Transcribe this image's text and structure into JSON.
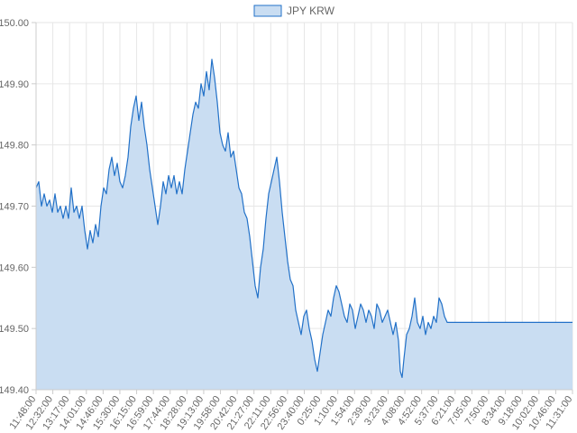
{
  "chart_data": {
    "type": "area",
    "series": [
      {
        "name": "JPY KRW",
        "color": "#2271c8",
        "fill": "#c9ddf2",
        "points": [
          [
            0,
            149.73
          ],
          [
            3,
            149.74
          ],
          [
            6,
            149.7
          ],
          [
            9,
            149.72
          ],
          [
            12,
            149.7
          ],
          [
            15,
            149.71
          ],
          [
            18,
            149.69
          ],
          [
            21,
            149.72
          ],
          [
            24,
            149.69
          ],
          [
            27,
            149.7
          ],
          [
            30,
            149.68
          ],
          [
            33,
            149.7
          ],
          [
            36,
            149.68
          ],
          [
            39,
            149.73
          ],
          [
            42,
            149.69
          ],
          [
            45,
            149.7
          ],
          [
            48,
            149.68
          ],
          [
            51,
            149.7
          ],
          [
            54,
            149.66
          ],
          [
            57,
            149.63
          ],
          [
            60,
            149.66
          ],
          [
            63,
            149.64
          ],
          [
            66,
            149.67
          ],
          [
            69,
            149.65
          ],
          [
            72,
            149.7
          ],
          [
            75,
            149.73
          ],
          [
            78,
            149.72
          ],
          [
            81,
            149.76
          ],
          [
            84,
            149.78
          ],
          [
            87,
            149.75
          ],
          [
            90,
            149.77
          ],
          [
            93,
            149.74
          ],
          [
            96,
            149.73
          ],
          [
            99,
            149.75
          ],
          [
            102,
            149.78
          ],
          [
            105,
            149.83
          ],
          [
            108,
            149.86
          ],
          [
            111,
            149.88
          ],
          [
            114,
            149.84
          ],
          [
            117,
            149.87
          ],
          [
            120,
            149.83
          ],
          [
            123,
            149.8
          ],
          [
            126,
            149.76
          ],
          [
            129,
            149.73
          ],
          [
            132,
            149.7
          ],
          [
            135,
            149.67
          ],
          [
            138,
            149.7
          ],
          [
            141,
            149.74
          ],
          [
            144,
            149.72
          ],
          [
            147,
            149.75
          ],
          [
            150,
            149.73
          ],
          [
            153,
            149.75
          ],
          [
            156,
            149.72
          ],
          [
            159,
            149.74
          ],
          [
            162,
            149.72
          ],
          [
            165,
            149.76
          ],
          [
            168,
            149.79
          ],
          [
            171,
            149.82
          ],
          [
            174,
            149.85
          ],
          [
            177,
            149.87
          ],
          [
            180,
            149.86
          ],
          [
            183,
            149.9
          ],
          [
            186,
            149.88
          ],
          [
            189,
            149.92
          ],
          [
            192,
            149.89
          ],
          [
            195,
            149.94
          ],
          [
            198,
            149.91
          ],
          [
            201,
            149.87
          ],
          [
            204,
            149.82
          ],
          [
            207,
            149.8
          ],
          [
            210,
            149.79
          ],
          [
            213,
            149.82
          ],
          [
            216,
            149.78
          ],
          [
            219,
            149.79
          ],
          [
            222,
            149.76
          ],
          [
            225,
            149.73
          ],
          [
            228,
            149.72
          ],
          [
            231,
            149.69
          ],
          [
            234,
            149.68
          ],
          [
            237,
            149.65
          ],
          [
            240,
            149.61
          ],
          [
            243,
            149.57
          ],
          [
            246,
            149.55
          ],
          [
            249,
            149.6
          ],
          [
            252,
            149.63
          ],
          [
            255,
            149.68
          ],
          [
            258,
            149.72
          ],
          [
            261,
            149.74
          ],
          [
            264,
            149.76
          ],
          [
            267,
            149.78
          ],
          [
            270,
            149.74
          ],
          [
            273,
            149.69
          ],
          [
            276,
            149.65
          ],
          [
            279,
            149.61
          ],
          [
            282,
            149.58
          ],
          [
            285,
            149.57
          ],
          [
            288,
            149.53
          ],
          [
            291,
            149.51
          ],
          [
            294,
            149.49
          ],
          [
            297,
            149.52
          ],
          [
            300,
            149.53
          ],
          [
            303,
            149.5
          ],
          [
            306,
            149.48
          ],
          [
            309,
            149.45
          ],
          [
            312,
            149.43
          ],
          [
            315,
            149.46
          ],
          [
            318,
            149.49
          ],
          [
            321,
            149.51
          ],
          [
            324,
            149.53
          ],
          [
            327,
            149.52
          ],
          [
            330,
            149.55
          ],
          [
            333,
            149.57
          ],
          [
            336,
            149.56
          ],
          [
            339,
            149.54
          ],
          [
            342,
            149.52
          ],
          [
            345,
            149.51
          ],
          [
            348,
            149.54
          ],
          [
            351,
            149.53
          ],
          [
            354,
            149.5
          ],
          [
            357,
            149.52
          ],
          [
            360,
            149.54
          ],
          [
            363,
            149.53
          ],
          [
            366,
            149.51
          ],
          [
            369,
            149.53
          ],
          [
            372,
            149.52
          ],
          [
            375,
            149.5
          ],
          [
            378,
            149.54
          ],
          [
            381,
            149.53
          ],
          [
            384,
            149.51
          ],
          [
            387,
            149.52
          ],
          [
            390,
            149.53
          ],
          [
            393,
            149.51
          ],
          [
            396,
            149.49
          ],
          [
            399,
            149.51
          ],
          [
            402,
            149.48
          ],
          [
            404,
            149.43
          ],
          [
            406,
            149.42
          ],
          [
            408,
            149.45
          ],
          [
            411,
            149.49
          ],
          [
            414,
            149.5
          ],
          [
            417,
            149.52
          ],
          [
            420,
            149.55
          ],
          [
            423,
            149.51
          ],
          [
            426,
            149.5
          ],
          [
            429,
            149.52
          ],
          [
            432,
            149.49
          ],
          [
            435,
            149.51
          ],
          [
            438,
            149.5
          ],
          [
            441,
            149.52
          ],
          [
            444,
            149.51
          ],
          [
            447,
            149.55
          ],
          [
            450,
            149.54
          ],
          [
            453,
            149.52
          ],
          [
            456,
            149.51
          ],
          [
            459,
            149.51
          ],
          [
            470,
            149.51
          ],
          [
            500,
            149.51
          ],
          [
            530,
            149.51
          ],
          [
            560,
            149.51
          ],
          [
            595,
            149.51
          ]
        ]
      }
    ],
    "x_labels": [
      "11:48:00",
      "12:32:00",
      "13:17:00",
      "14:01:00",
      "14:46:00",
      "15:30:00",
      "16:15:00",
      "16:59:00",
      "17:44:00",
      "18:28:00",
      "19:13:00",
      "19:58:00",
      "20:42:00",
      "21:27:00",
      "22:11:00",
      "22:56:00",
      "23:40:00",
      "0:25:00",
      "1:10:00",
      "1:54:00",
      "2:39:00",
      "3:23:00",
      "4:08:00",
      "4:52:00",
      "5:37:00",
      "6:21:00",
      "7:05:00",
      "7:50:00",
      "8:34:00",
      "9:18:00",
      "10:02:00",
      "10:46:00",
      "11:31:00"
    ],
    "y_ticks": [
      "150.00",
      "149.90",
      "149.80",
      "149.70",
      "149.60",
      "149.50",
      "149.40"
    ],
    "y_range": [
      149.4,
      150.0
    ],
    "x_range": [
      0,
      595
    ],
    "grid": true,
    "legend_position": "top"
  }
}
